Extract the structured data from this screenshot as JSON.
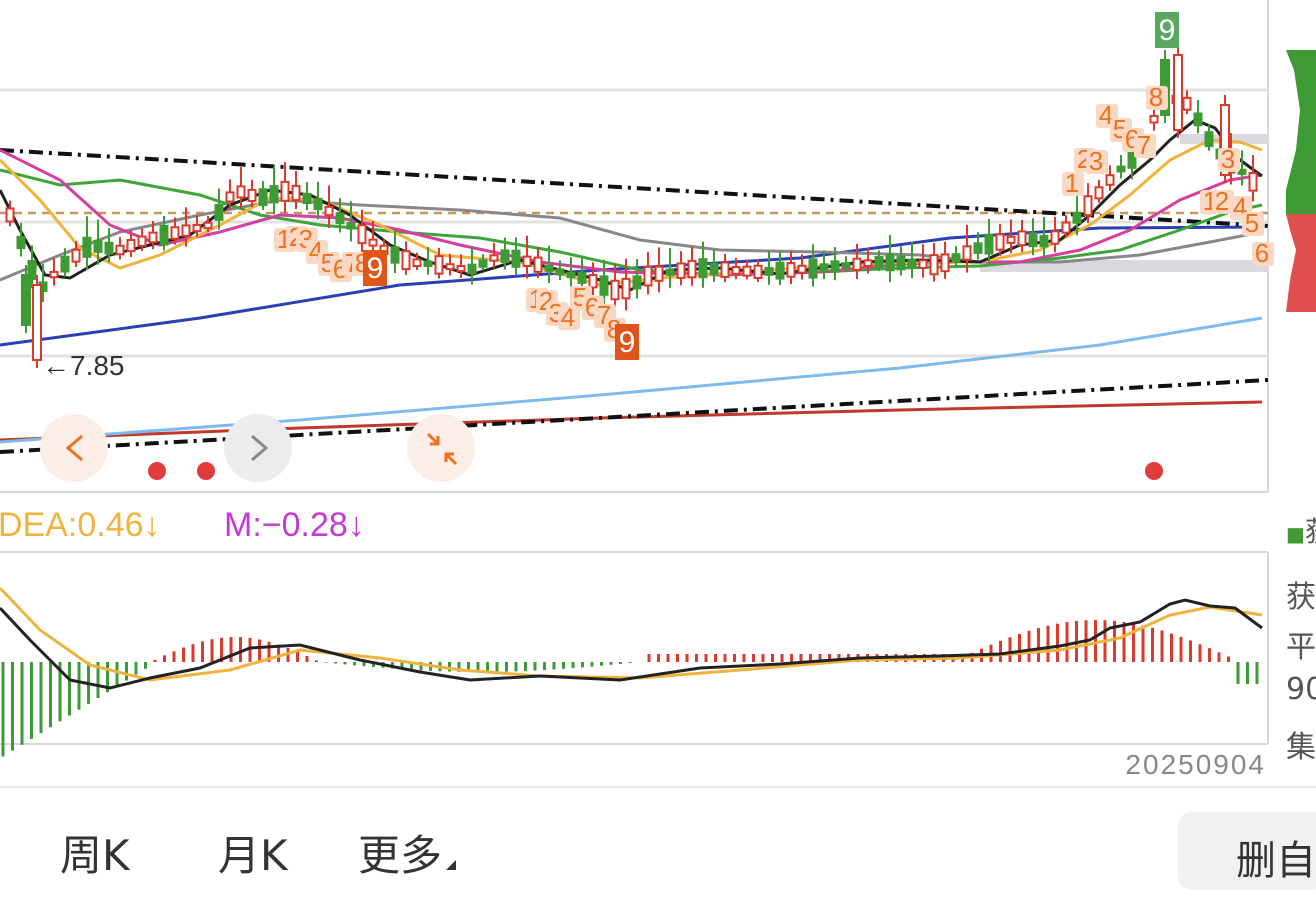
{
  "colors": {
    "up": "#d93a2b",
    "down": "#3e9a34",
    "ma5": "#222222",
    "ma10": "#f2b33c",
    "ma20": "#d63fa0",
    "ma30": "#3fa53a",
    "ma60": "#888888",
    "ma120": "#2a3fb5",
    "ma250": "#7dbbef",
    "long": "#c0392b",
    "dea": "#f2b33c",
    "m": "#c43ad6",
    "seq_orange": "#f07020",
    "seq_box": "#f9d9c3",
    "seq_nine": "#e0551a",
    "seq_nine_top": "#5aa860"
  },
  "chart_data": [
    {
      "type": "candlestick",
      "title": "",
      "annotations": {
        "low_marker": "←7.85",
        "nav_prev_icon": "chevron-left-icon",
        "nav_next_icon": "chevron-right-icon",
        "collapse_icon": "collapse-arrows-icon"
      },
      "td_sequence_labels": [
        "1",
        "2",
        "3",
        "4",
        "5",
        "6",
        "7",
        "8",
        "9"
      ],
      "td_nine": "9",
      "date_label": "20250904"
    },
    {
      "type": "bar",
      "title": "",
      "indicator_labels": {
        "dea": "DEA:0.46↓",
        "m": "M:−0.28↓"
      }
    }
  ],
  "tabs": [
    {
      "label": "周K"
    },
    {
      "label": "月K"
    },
    {
      "label": "更多"
    }
  ],
  "delete_button": {
    "label": "删自"
  },
  "side_panel": {
    "labels": [
      "获",
      "平",
      "90",
      "集"
    ],
    "legend_marker": "■",
    "legend_text": "获"
  }
}
